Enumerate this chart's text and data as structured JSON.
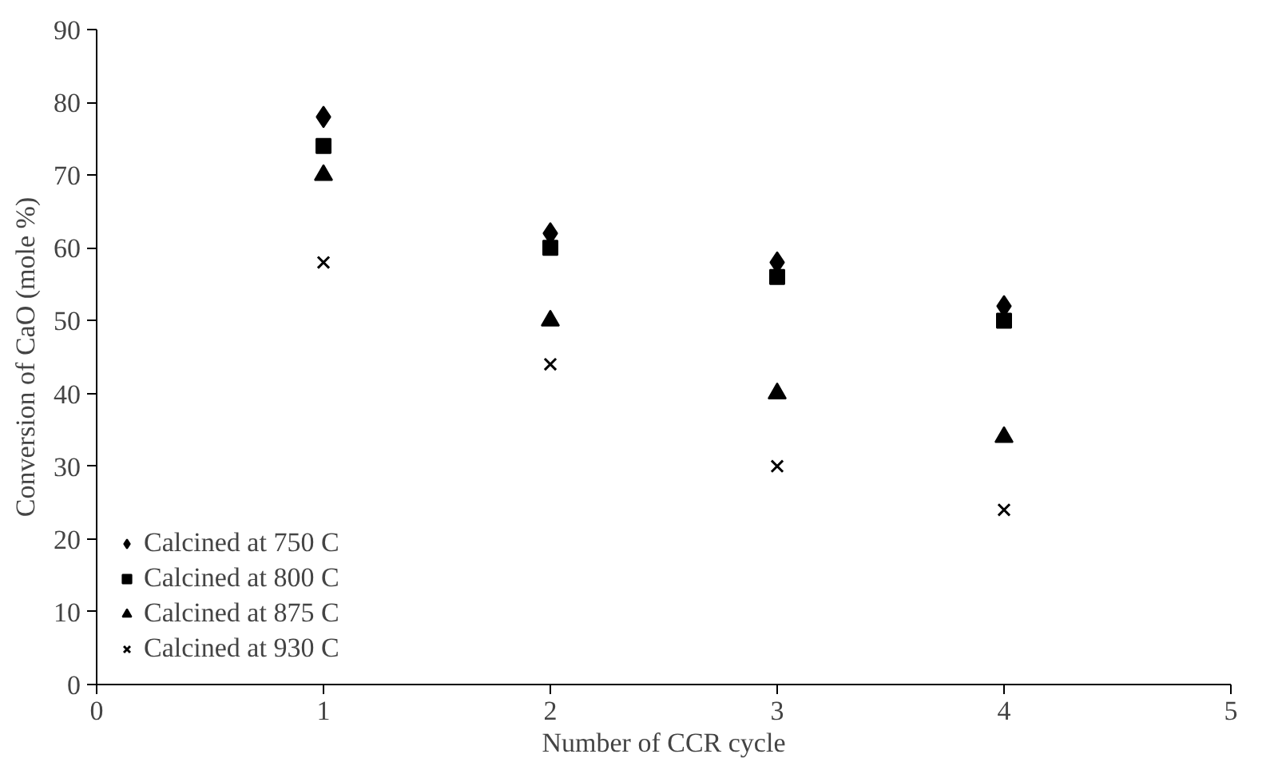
{
  "chart_data": {
    "type": "scatter",
    "xlabel": "Number of CCR cycle",
    "ylabel": "Conversion of CaO (mole %)",
    "x": [
      1,
      2,
      3,
      4
    ],
    "series": [
      {
        "name": "Calcined at 750 C",
        "color": "#000000",
        "marker": "diamond",
        "values": [
          78,
          62,
          58,
          52
        ]
      },
      {
        "name": "Calcined at 800 C",
        "color": "#000000",
        "marker": "square",
        "values": [
          74,
          60,
          56,
          50
        ]
      },
      {
        "name": "Calcined at 875 C",
        "color": "#000000",
        "marker": "triangle",
        "values": [
          70,
          50,
          40,
          34
        ]
      },
      {
        "name": "Calcined at 930 C",
        "color": "#000000",
        "marker": "cross",
        "values": [
          58,
          44,
          30,
          24
        ]
      }
    ],
    "xlim": [
      0,
      5
    ],
    "xticks": [
      0,
      1,
      2,
      3,
      4,
      5
    ],
    "ylim": [
      0,
      90
    ],
    "yticks": [
      0,
      10,
      20,
      30,
      40,
      50,
      60,
      70,
      80,
      90
    ],
    "grid": false,
    "legend": "bottom left"
  }
}
